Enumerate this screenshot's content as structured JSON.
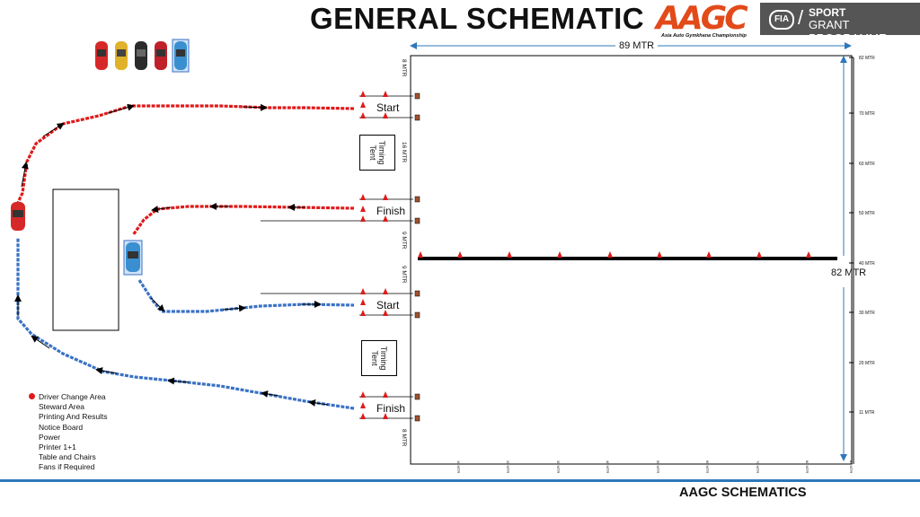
{
  "header": {
    "title": "GENERAL SCHEMATIC"
  },
  "logos": {
    "aagc_mark": "AAGC",
    "aagc_tagline": "Asia Auto Gymkhana Championship",
    "fia_badge": "FIA",
    "fia_line1": "SPORT",
    "fia_line2": "GRANT PROGRAMME"
  },
  "course": {
    "width_label": "89  MTR",
    "length_label": "82 MTR",
    "upper": {
      "start": "Start",
      "finish": "Finish",
      "tent": "Timing\nTent",
      "dim_top": "8 MTR",
      "dim_mid": "16 MTR",
      "dim_bottom": "9 MTR"
    },
    "lower": {
      "start": "Start",
      "finish": "Finish",
      "tent": "Timing\nTent",
      "dim_top": "9 MTR",
      "dim_bottom": "8 MTR"
    },
    "right_ticks": [
      "82 MTR",
      "70 MTR",
      "60 MTR",
      "50 MTR",
      "40 MTR",
      "30 MTR",
      "20 MTR",
      "11 MTR"
    ],
    "bottom_ticks": [
      "10 MTR",
      "20 MTR",
      "30 MTR",
      "40 MTR",
      "50 MTR",
      "60 MTR",
      "70 MTR",
      "80 MTR",
      "89 MTR"
    ]
  },
  "legend": {
    "items": [
      "Driver Change Area",
      "Steward  Area",
      "Printing And Results",
      "Notice Board",
      "Power",
      "Printer 1+1",
      "Table and Chairs",
      "Fans if Required"
    ]
  },
  "footer": {
    "text": "AAGC SCHEMATICS"
  },
  "colors": {
    "red_path": "#e01a1a",
    "blue_path": "#3a72c4",
    "accent_line": "#2f77b8"
  },
  "cars": {
    "queue_colors": [
      "#d62828",
      "#e0b22a",
      "#2b2b2b",
      "#c0202a",
      "#3a8fd0"
    ]
  }
}
